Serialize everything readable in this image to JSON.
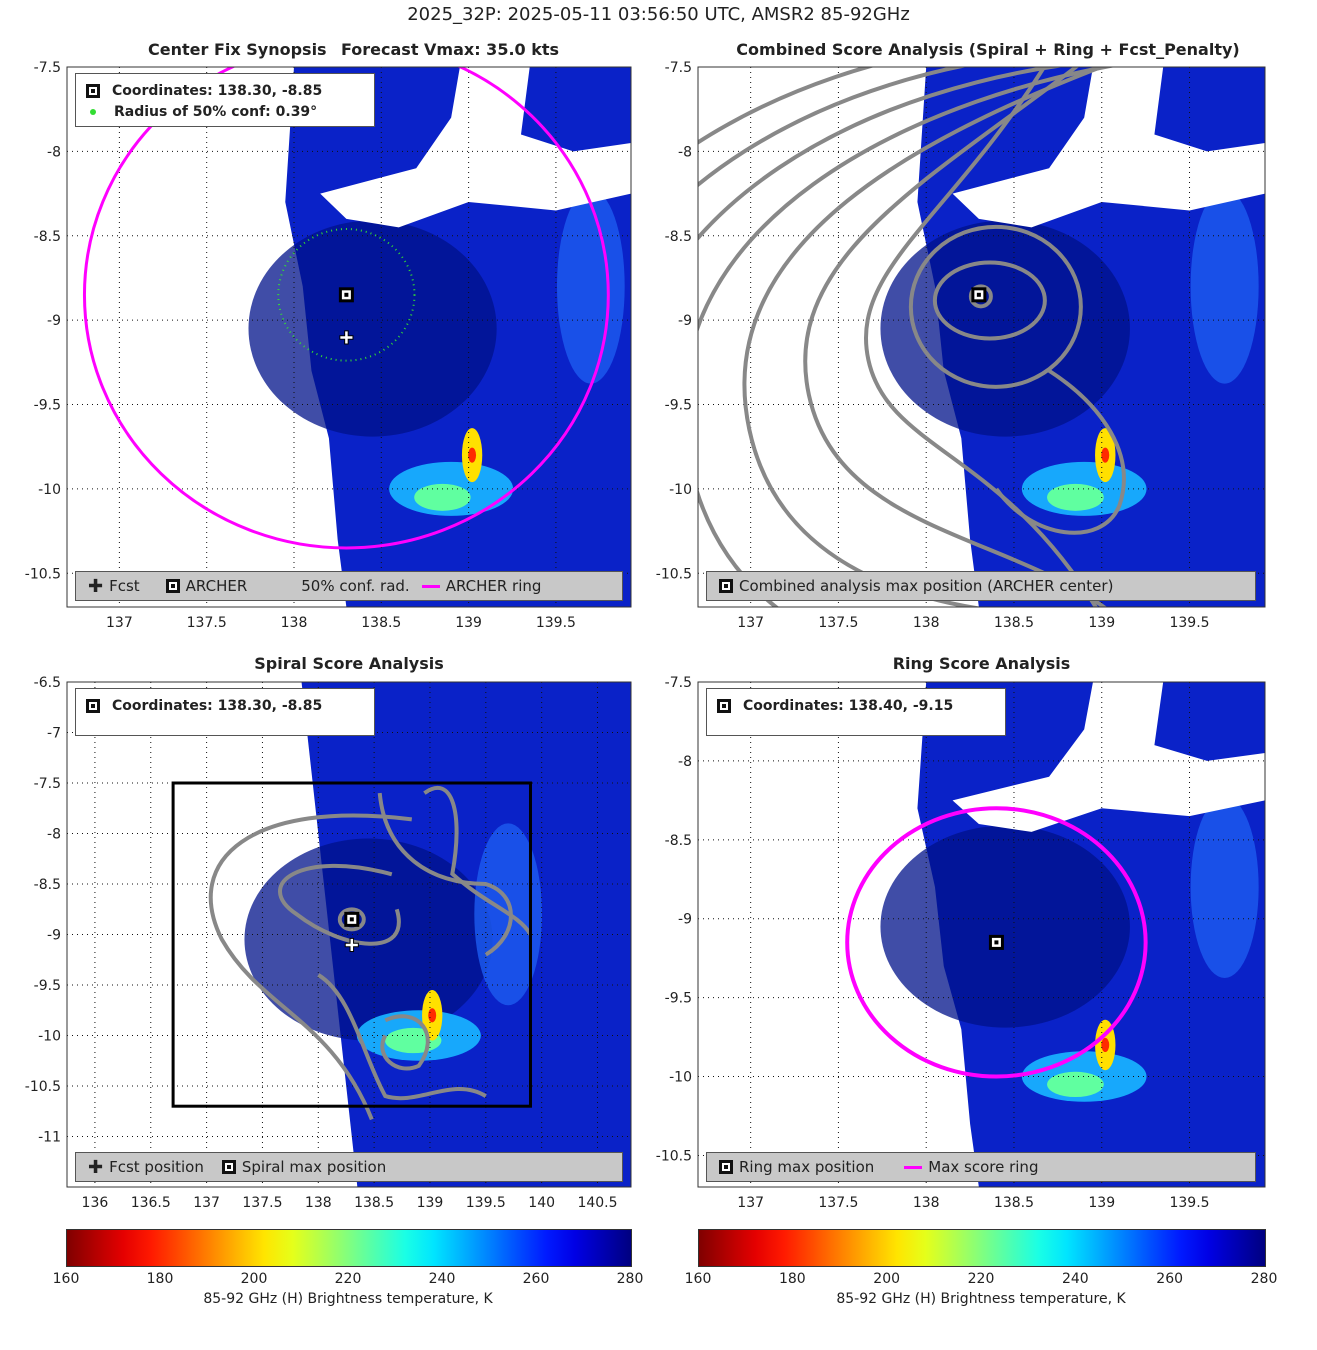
{
  "title": "2025_32P: 2025-05-11 03:56:50 UTC, AMSR2 85-92GHz",
  "panels": {
    "synopsis": {
      "title_left": "Center Fix Synopsis",
      "title_right": "Forecast Vmax: 35.0 kts",
      "info": [
        "Coordinates: 138.30, -8.85",
        "Radius of 50% conf: 0.39°"
      ],
      "legend": [
        "Fcst",
        "ARCHER",
        "50% conf. rad.",
        "ARCHER ring"
      ]
    },
    "combined": {
      "title": "Combined Score Analysis (Spiral + Ring + Fcst_Penalty)",
      "legend": [
        "Combined analysis max position (ARCHER center)"
      ]
    },
    "spiral": {
      "title": "Spiral Score Analysis",
      "info": [
        "Coordinates: 138.30, -8.85"
      ],
      "legend": [
        "Fcst position",
        "Spiral max position"
      ]
    },
    "ring": {
      "title": "Ring Score Analysis",
      "info": [
        "Coordinates: 138.40, -9.15"
      ],
      "legend": [
        "Ring max position",
        "Max score ring"
      ]
    }
  },
  "colorbar": {
    "label": "85-92 GHz (H) Brightness temperature, K",
    "ticks": [
      "160",
      "180",
      "200",
      "220",
      "240",
      "260",
      "280"
    ]
  },
  "colors": {
    "ring": "#ff00ff",
    "contour": "#888888",
    "conf": "#33dd33"
  },
  "chart_data": [
    {
      "type": "heatmap",
      "id": "synopsis",
      "title": "Center Fix Synopsis   Forecast Vmax: 35.0 kts",
      "xlim": [
        136.7,
        139.93
      ],
      "ylim": [
        -10.7,
        -7.5
      ],
      "xticks": [
        137,
        137.5,
        138,
        138.5,
        139,
        139.5
      ],
      "yticks": [
        -7.5,
        -8,
        -8.5,
        -9,
        -9.5,
        -10,
        -10.5
      ],
      "fcst": [
        138.3,
        -9.1
      ],
      "archer_center": [
        138.3,
        -8.85
      ],
      "conf_radius_deg": 0.39,
      "archer_ring": {
        "center": [
          138.3,
          -8.85
        ],
        "radius": 1.5
      },
      "cold_spot": {
        "lon": 139.0,
        "lat": -9.8,
        "min_tb": 195
      }
    },
    {
      "type": "heatmap",
      "id": "combined",
      "title": "Combined Score Analysis (Spiral + Ring + Fcst_Penalty)",
      "xlim": [
        136.7,
        139.93
      ],
      "ylim": [
        -10.7,
        -7.5
      ],
      "xticks": [
        137,
        137.5,
        138,
        138.5,
        139,
        139.5
      ],
      "yticks": [
        -7.5,
        -8,
        -8.5,
        -9,
        -9.5,
        -10,
        -10.5
      ],
      "max_position": [
        138.3,
        -8.85
      ]
    },
    {
      "type": "heatmap",
      "id": "spiral",
      "title": "Spiral Score Analysis",
      "xlim": [
        135.75,
        140.8
      ],
      "ylim": [
        -11.5,
        -6.5
      ],
      "xticks": [
        136,
        136.5,
        137,
        137.5,
        138,
        138.5,
        139,
        139.5,
        140,
        140.5
      ],
      "yticks": [
        -6.5,
        -7,
        -7.5,
        -8,
        -8.5,
        -9,
        -9.5,
        -10,
        -10.5,
        -11
      ],
      "fcst": [
        138.3,
        -9.1
      ],
      "spiral_max": [
        138.3,
        -8.85
      ],
      "analysis_box": {
        "lon": [
          136.7,
          139.9
        ],
        "lat": [
          -10.7,
          -7.5
        ]
      }
    },
    {
      "type": "heatmap",
      "id": "ring",
      "title": "Ring Score Analysis",
      "xlim": [
        136.7,
        139.93
      ],
      "ylim": [
        -10.7,
        -7.5
      ],
      "xticks": [
        137,
        137.5,
        138,
        138.5,
        139,
        139.5
      ],
      "yticks": [
        -7.5,
        -8,
        -8.5,
        -9,
        -9.5,
        -10,
        -10.5
      ],
      "ring_max": [
        138.4,
        -9.15
      ],
      "max_score_ring": {
        "center": [
          138.4,
          -9.15
        ],
        "radius": 0.85
      }
    }
  ]
}
